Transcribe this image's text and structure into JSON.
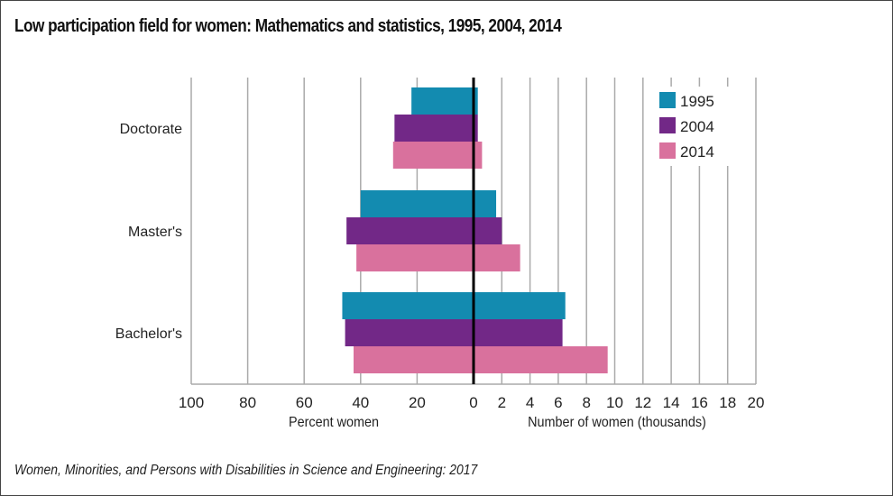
{
  "title": "Low participation field for women: Mathematics and statistics, 1995, 2004, 2014",
  "source": "Women, Minorities, and Persons with Disabilities in Science and Engineering: 2017",
  "chart_data": {
    "type": "bar",
    "orientation": "horizontal-butterfly",
    "title": "Low participation field for women: Mathematics and statistics, 1995, 2004, 2014",
    "categories": [
      "Doctorate",
      "Master's",
      "Bachelor's"
    ],
    "left_axis": {
      "label": "Percent women",
      "range": [
        0,
        100
      ],
      "ticks": [
        "100",
        "80",
        "60",
        "40",
        "20",
        "0"
      ]
    },
    "right_axis": {
      "label": "Number of women (thousands)",
      "range": [
        0,
        20
      ],
      "ticks": [
        "2",
        "4",
        "6",
        "8",
        "10",
        "12",
        "14",
        "16",
        "18",
        "20"
      ]
    },
    "series": [
      {
        "name": "1995",
        "color": "#138bb0",
        "percent_women": [
          22,
          40,
          46.5
        ],
        "number_thousands": [
          0.3,
          1.6,
          6.5
        ]
      },
      {
        "name": "2004",
        "color": "#722887",
        "percent_women": [
          28,
          45,
          45.5
        ],
        "number_thousands": [
          0.3,
          2.0,
          6.3
        ]
      },
      {
        "name": "2014",
        "color": "#d9719d",
        "percent_women": [
          28.5,
          41.5,
          42.5
        ],
        "number_thousands": [
          0.6,
          3.3,
          9.5
        ]
      }
    ],
    "legend": {
      "position": "top-right",
      "entries": [
        "1995",
        "2004",
        "2014"
      ]
    },
    "grid": true
  }
}
